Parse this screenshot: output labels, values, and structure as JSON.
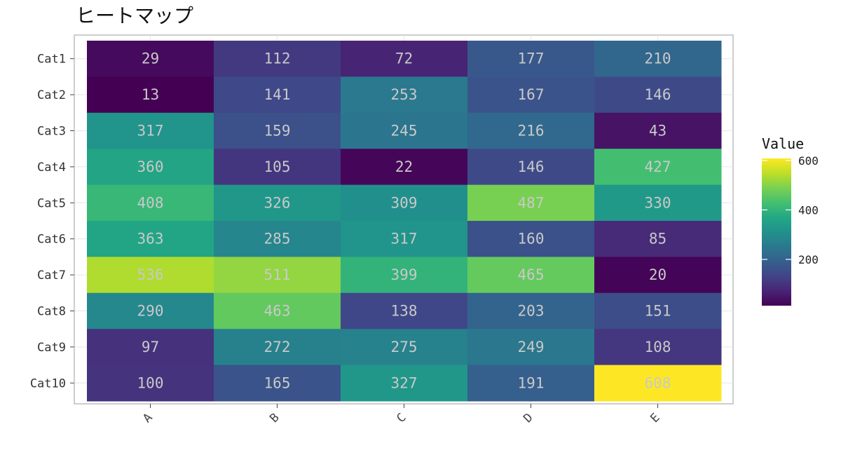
{
  "chart_data": {
    "type": "heatmap",
    "title": "ヒートマップ",
    "columns": [
      "A",
      "B",
      "C",
      "D",
      "E"
    ],
    "rows": [
      "Cat1",
      "Cat2",
      "Cat3",
      "Cat4",
      "Cat5",
      "Cat6",
      "Cat7",
      "Cat8",
      "Cat9",
      "Cat10"
    ],
    "values": [
      [
        29,
        112,
        72,
        177,
        210
      ],
      [
        13,
        141,
        253,
        167,
        146
      ],
      [
        317,
        159,
        245,
        216,
        43
      ],
      [
        360,
        105,
        22,
        146,
        427
      ],
      [
        408,
        326,
        309,
        487,
        330
      ],
      [
        363,
        285,
        317,
        160,
        85
      ],
      [
        536,
        511,
        399,
        465,
        20
      ],
      [
        290,
        463,
        138,
        203,
        151
      ],
      [
        97,
        272,
        275,
        249,
        108
      ],
      [
        100,
        165,
        327,
        191,
        608
      ]
    ],
    "colorscale": "viridis",
    "value_range": [
      13,
      608
    ],
    "legend": {
      "title": "Value",
      "position": "right",
      "ticks": [
        200,
        400,
        600
      ]
    },
    "grid": true
  }
}
